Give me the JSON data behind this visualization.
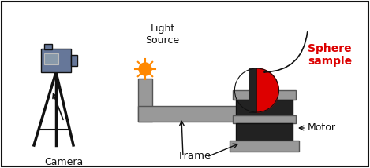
{
  "background_color": "#ffffff",
  "border_color": "#000000",
  "labels": {
    "light_source": "Light\nSource",
    "camera": "Camera",
    "frame": "Frame",
    "motor": "Motor",
    "sphere": "Sphere\nsample"
  },
  "colors": {
    "gray": "#999999",
    "dark_gray": "#555555",
    "black": "#111111",
    "orange": "#ff8800",
    "sphere_red": "#dd0000",
    "motor_black": "#222222",
    "camera_blue": "#667799",
    "camera_screen": "#8899aa",
    "light_gray": "#bbbbbb"
  }
}
